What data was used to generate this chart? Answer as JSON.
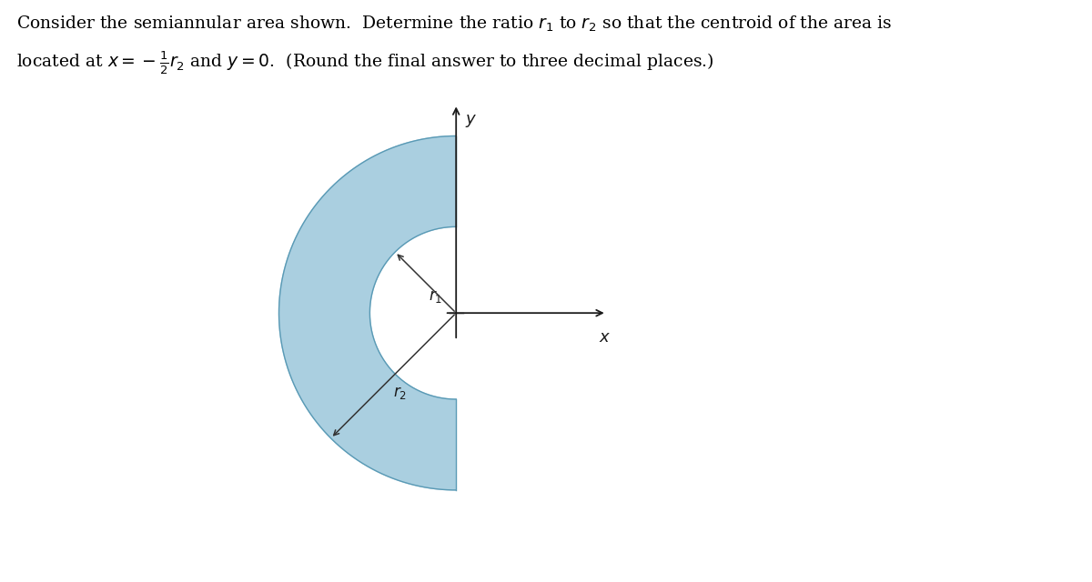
{
  "background_color": "#ffffff",
  "shape_fill_color": "#aacfe0",
  "shape_edge_color": "#5a9ab5",
  "axis_color": "#1a1a1a",
  "arrow_color": "#333333",
  "r1_label": "$r_1$",
  "r2_label": "$r_2$",
  "x_label": "$x$",
  "y_label": "$y$",
  "r1": 0.38,
  "r2": 0.78,
  "text_fontsize": 13.5,
  "label_fontsize": 12,
  "axis_label_fontsize": 13
}
